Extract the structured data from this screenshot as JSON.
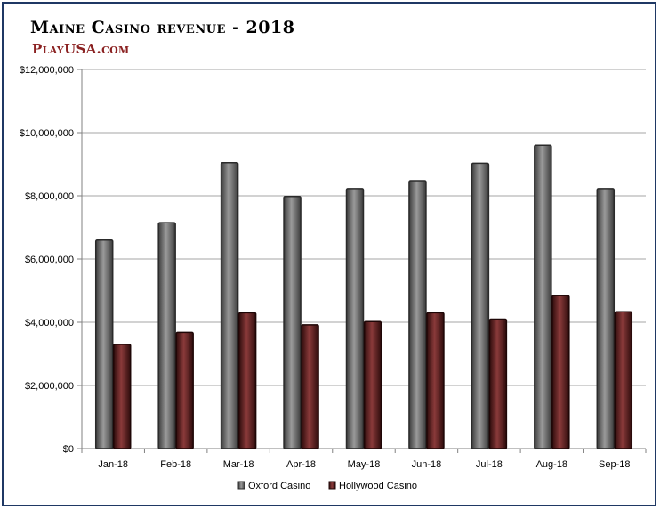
{
  "header": {
    "title": "Maine Casino revenue - 2018",
    "brand_line": "PlayUSA.com",
    "brand_prefix": "P",
    "brand_lay": "LAY",
    "brand_usa": "USA.",
    "brand_com": "COM"
  },
  "colors": {
    "frame": "#1f3864",
    "oxford": "#6b6b6b",
    "hollywood": "#5a1f1f",
    "brand": "#8b2222",
    "grid": "#a6a6a6"
  },
  "chart_data": {
    "type": "bar",
    "title": "Maine Casino revenue - 2018",
    "xlabel": "",
    "ylabel": "",
    "ylim": [
      0,
      12000000
    ],
    "y_ticks": [
      0,
      2000000,
      4000000,
      6000000,
      8000000,
      10000000,
      12000000
    ],
    "y_tick_labels": [
      "$0",
      "$2,000,000",
      "$4,000,000",
      "$6,000,000",
      "$8,000,000",
      "$10,000,000",
      "$12,000,000"
    ],
    "categories": [
      "Jan-18",
      "Feb-18",
      "Mar-18",
      "Apr-18",
      "May-18",
      "Jun-18",
      "Jul-18",
      "Aug-18",
      "Sep-18"
    ],
    "series": [
      {
        "name": "Oxford Casino",
        "values": [
          6600000,
          7150000,
          9050000,
          7980000,
          8230000,
          8480000,
          9030000,
          9600000,
          8230000
        ]
      },
      {
        "name": "Hollywood Casino",
        "values": [
          3300000,
          3680000,
          4300000,
          3920000,
          4020000,
          4300000,
          4100000,
          4840000,
          4330000
        ]
      }
    ],
    "grid": true,
    "legend_position": "bottom"
  }
}
